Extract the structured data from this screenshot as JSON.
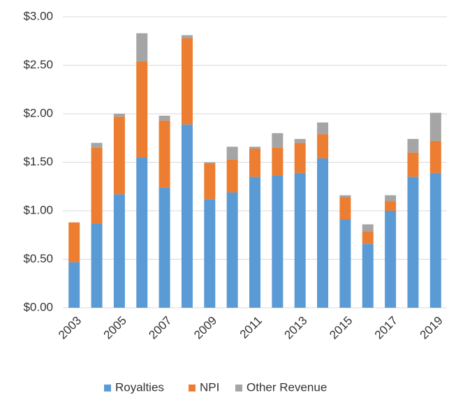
{
  "chart_data": {
    "type": "stacked_bar",
    "categories": [
      "2003",
      null,
      "2005",
      null,
      "2007",
      null,
      "2009",
      null,
      "2011",
      null,
      "2013",
      null,
      "2015",
      null,
      "2017",
      null,
      "2019"
    ],
    "series": [
      {
        "name": "Royalties",
        "color": "#5b9bd5",
        "values": [
          0.47,
          0.87,
          1.17,
          1.55,
          1.24,
          1.89,
          1.12,
          1.19,
          1.35,
          1.36,
          1.39,
          1.54,
          0.91,
          0.66,
          1.0,
          1.35,
          1.39
        ]
      },
      {
        "name": "NPI",
        "color": "#ed7d31",
        "values": [
          0.41,
          0.78,
          0.8,
          0.99,
          0.69,
          0.89,
          0.37,
          0.34,
          0.29,
          0.29,
          0.31,
          0.25,
          0.23,
          0.13,
          0.1,
          0.25,
          0.33
        ]
      },
      {
        "name": "Other Revenue",
        "color": "#a5a5a5",
        "values": [
          0,
          0.05,
          0.03,
          0.29,
          0.05,
          0.03,
          0.01,
          0.13,
          0.02,
          0.15,
          0.04,
          0.12,
          0.02,
          0.07,
          0.06,
          0.14,
          0.29
        ]
      }
    ],
    "ylim": [
      0,
      3
    ],
    "yticks": [
      {
        "value": 0,
        "label": "$0.00"
      },
      {
        "value": 0.5,
        "label": "$0.50"
      },
      {
        "value": 1,
        "label": "$1.00"
      },
      {
        "value": 1.5,
        "label": "$1.50"
      },
      {
        "value": 2,
        "label": "$2.00"
      },
      {
        "value": 2.5,
        "label": "$2.50"
      },
      {
        "value": 3,
        "label": "$3.00"
      }
    ],
    "grid": true,
    "legend": "bottom"
  }
}
